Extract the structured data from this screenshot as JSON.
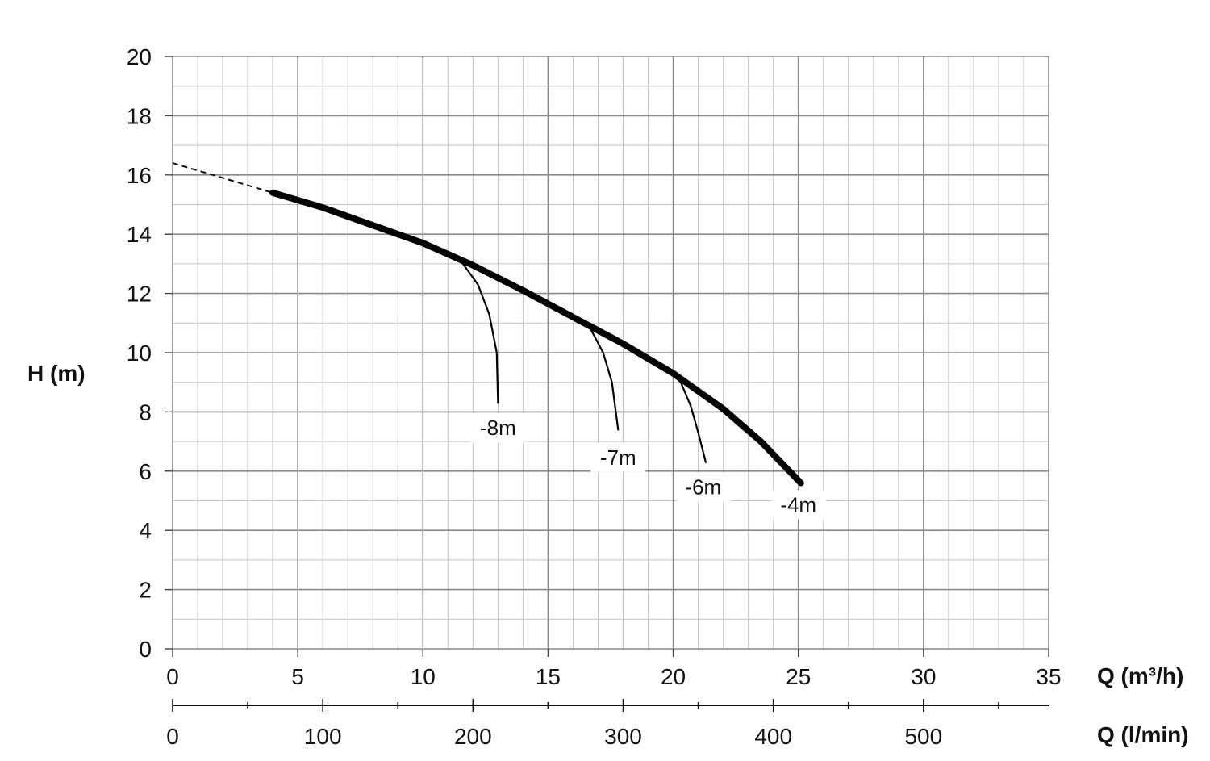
{
  "chart_data": {
    "type": "line",
    "ylabel": "H (m)",
    "xlabel": "Q (m³/h)",
    "x2label": "Q (l/min)",
    "xlim": [
      0,
      35
    ],
    "ylim": [
      0,
      20
    ],
    "x_ticks": [
      "0",
      "5",
      "10",
      "15",
      "20",
      "25",
      "30",
      "35"
    ],
    "y_ticks": [
      "0",
      "2",
      "4",
      "6",
      "8",
      "10",
      "12",
      "14",
      "16",
      "18",
      "20"
    ],
    "x2_ticks": [
      "0",
      "100",
      "200",
      "300",
      "400",
      "500"
    ],
    "grid": true,
    "main_curve": {
      "dashed_segment": [
        [
          0,
          16.4
        ],
        [
          4,
          15.4
        ]
      ],
      "points": [
        [
          4,
          15.4
        ],
        [
          6,
          14.9
        ],
        [
          8,
          14.3
        ],
        [
          10,
          13.7
        ],
        [
          12,
          12.95
        ],
        [
          14,
          12.1
        ],
        [
          16,
          11.2
        ],
        [
          18,
          10.3
        ],
        [
          20,
          9.3
        ],
        [
          22,
          8.1
        ],
        [
          23.5,
          7.0
        ],
        [
          25.1,
          5.6
        ]
      ]
    },
    "series": [
      {
        "name": "-8m",
        "points": [
          [
            10.8,
            13.5
          ],
          [
            11.6,
            13.0
          ],
          [
            12.2,
            12.3
          ],
          [
            12.65,
            11.3
          ],
          [
            12.95,
            10.0
          ],
          [
            13.0,
            8.3
          ]
        ]
      },
      {
        "name": "-7m",
        "points": [
          [
            16.0,
            11.2
          ],
          [
            16.7,
            10.8
          ],
          [
            17.2,
            10.0
          ],
          [
            17.55,
            9.0
          ],
          [
            17.8,
            7.4
          ]
        ]
      },
      {
        "name": "-6m",
        "points": [
          [
            19.8,
            9.4
          ],
          [
            20.3,
            9.0
          ],
          [
            20.7,
            8.2
          ],
          [
            21.0,
            7.3
          ],
          [
            21.3,
            6.3
          ]
        ]
      },
      {
        "name": "-4m",
        "points": [
          [
            25.1,
            5.6
          ]
        ]
      }
    ]
  }
}
